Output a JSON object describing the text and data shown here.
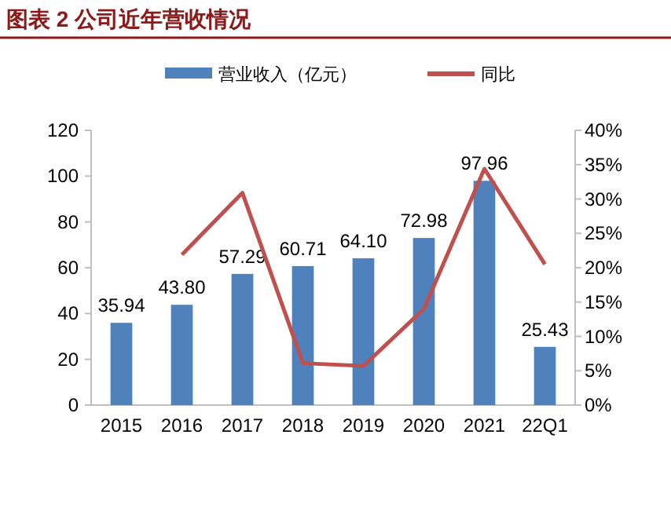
{
  "chart_data": {
    "type": "bar",
    "title": "图表 2 公司近年营收情况",
    "categories": [
      "2015",
      "2016",
      "2017",
      "2018",
      "2019",
      "2020",
      "2021",
      "22Q1"
    ],
    "series": [
      {
        "name": "营业收入（亿元）",
        "color": "#4f81bd",
        "values": [
          35.94,
          43.8,
          57.29,
          60.71,
          64.1,
          72.98,
          97.96,
          25.43
        ],
        "value_labels": [
          "35.94",
          "43.80",
          "57.29",
          "60.71",
          "64.10",
          "72.98",
          "97.96",
          "25.43"
        ]
      },
      {
        "name": "同比",
        "type": "line",
        "axis": "y2",
        "color": "#c0504d",
        "values": [
          null,
          21.9,
          30.9,
          6.1,
          5.7,
          14.0,
          34.4,
          20.5
        ]
      }
    ],
    "ylim": [
      0,
      120
    ],
    "yticks": [
      0,
      20,
      40,
      60,
      80,
      100,
      120
    ],
    "y2lim": [
      0,
      40
    ],
    "y2ticks": [
      {
        "value": 0,
        "label": "0%"
      },
      {
        "value": 5,
        "label": "5%"
      },
      {
        "value": 10,
        "label": "10%"
      },
      {
        "value": 15,
        "label": "15%"
      },
      {
        "value": 20,
        "label": "20%"
      },
      {
        "value": 25,
        "label": "25%"
      },
      {
        "value": 30,
        "label": "30%"
      },
      {
        "value": 35,
        "label": "35%"
      },
      {
        "value": 40,
        "label": "40%"
      }
    ],
    "legend": "top",
    "grid": false
  }
}
